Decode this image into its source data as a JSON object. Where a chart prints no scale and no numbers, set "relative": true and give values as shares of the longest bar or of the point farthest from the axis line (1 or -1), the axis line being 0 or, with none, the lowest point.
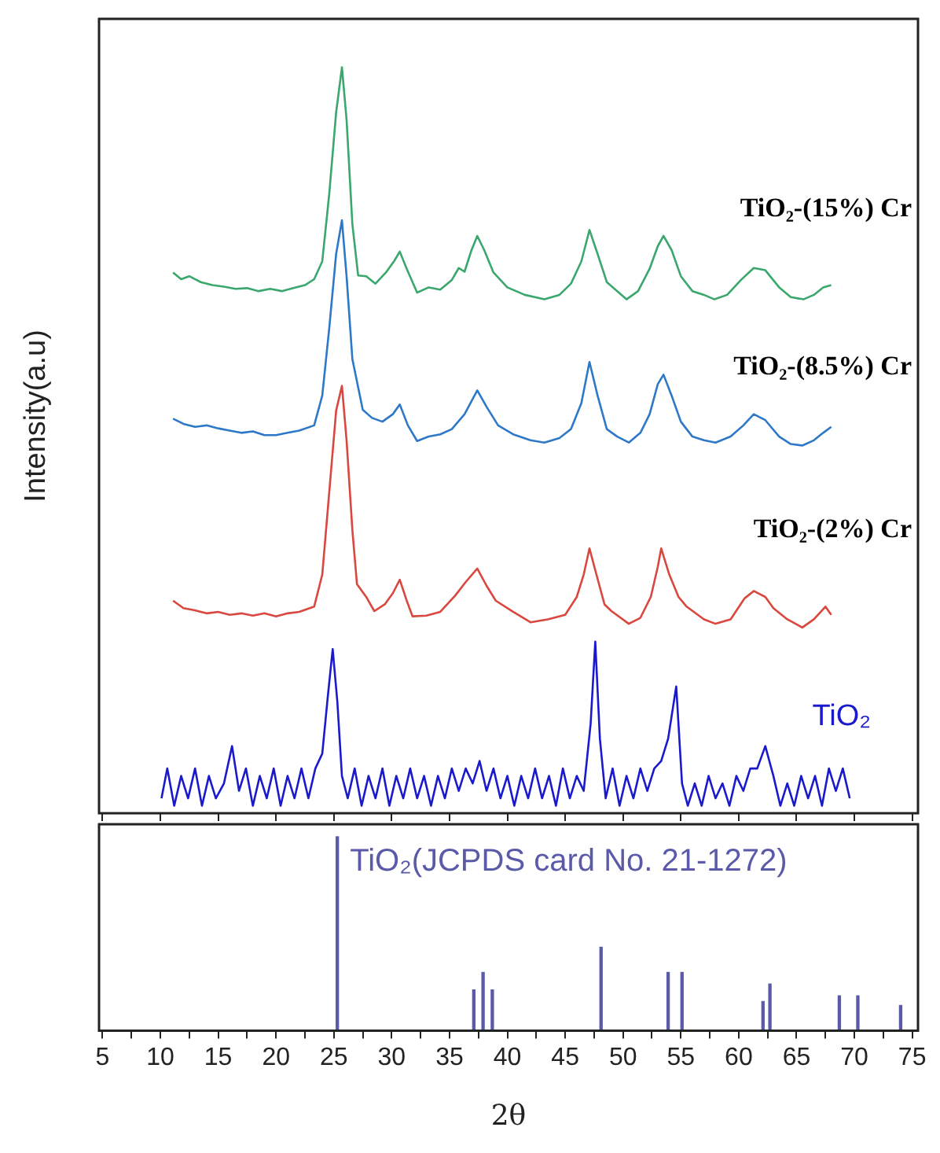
{
  "chart_data": [
    {
      "type": "line",
      "ylabel": "Intensity(a.u)",
      "relative": true,
      "xlim": [
        4.7,
        75.5
      ],
      "xticks": [
        5,
        10,
        15,
        20,
        25,
        30,
        35,
        40,
        45,
        50,
        55,
        60,
        65,
        70,
        75
      ],
      "tick_labels": false,
      "grid": false,
      "legend": false,
      "marker": "none",
      "line_style": "solid",
      "series": [
        {
          "name": "TiO₂-(15%) Cr",
          "color": "#3aa76d",
          "x": [
            11.1,
            11.8,
            12.5,
            13.5,
            14.5,
            15.5,
            16.5,
            17.5,
            18.5,
            19.5,
            20.5,
            21.5,
            22.5,
            23.3,
            24.0,
            24.6,
            25.2,
            25.7,
            26.1,
            26.6,
            27.1,
            27.8,
            28.6,
            29.5,
            30.2,
            30.7,
            31.3,
            32.2,
            33.2,
            34.2,
            35.2,
            35.8,
            36.3,
            36.9,
            37.4,
            38.0,
            38.8,
            40.0,
            41.5,
            43.2,
            44.5,
            45.5,
            46.4,
            47.1,
            47.8,
            48.6,
            49.5,
            50.3,
            51.3,
            52.3,
            53.0,
            53.5,
            54.2,
            55.0,
            56.0,
            57.0,
            57.9,
            59.0,
            60.2,
            61.3,
            62.3,
            63.5,
            64.5,
            65.6,
            66.5,
            67.3,
            68.0
          ],
          "values": [
            0.725,
            0.716,
            0.72,
            0.712,
            0.708,
            0.706,
            0.703,
            0.704,
            0.7,
            0.703,
            0.7,
            0.704,
            0.708,
            0.716,
            0.74,
            0.83,
            0.94,
            1.0,
            0.93,
            0.79,
            0.721,
            0.72,
            0.71,
            0.725,
            0.74,
            0.753,
            0.73,
            0.698,
            0.705,
            0.702,
            0.715,
            0.731,
            0.726,
            0.755,
            0.774,
            0.755,
            0.725,
            0.705,
            0.695,
            0.689,
            0.695,
            0.71,
            0.74,
            0.782,
            0.75,
            0.712,
            0.7,
            0.689,
            0.7,
            0.73,
            0.76,
            0.774,
            0.755,
            0.72,
            0.7,
            0.695,
            0.689,
            0.695,
            0.715,
            0.731,
            0.728,
            0.705,
            0.692,
            0.689,
            0.695,
            0.705,
            0.708
          ]
        },
        {
          "name": "TiO₂-(8.5%) Cr",
          "color": "#2e78c8",
          "x": [
            11.1,
            12.0,
            13.0,
            14.0,
            15.0,
            16.0,
            17.0,
            18.0,
            19.0,
            20.0,
            21.0,
            22.0,
            23.3,
            24.0,
            24.6,
            25.2,
            25.7,
            26.1,
            26.6,
            27.5,
            28.3,
            29.2,
            30.1,
            30.7,
            31.4,
            32.2,
            33.2,
            34.2,
            35.2,
            36.3,
            37.4,
            38.2,
            39.2,
            40.5,
            42.0,
            43.2,
            44.5,
            45.5,
            46.4,
            47.1,
            47.8,
            48.6,
            49.5,
            50.5,
            51.5,
            52.3,
            53.0,
            53.5,
            54.2,
            55.0,
            56.0,
            57.0,
            58.0,
            59.3,
            60.4,
            61.3,
            62.3,
            63.5,
            64.5,
            65.5,
            66.5,
            67.3,
            68.0
          ],
          "values": [
            0.529,
            0.522,
            0.518,
            0.52,
            0.516,
            0.513,
            0.51,
            0.512,
            0.507,
            0.507,
            0.51,
            0.513,
            0.52,
            0.56,
            0.65,
            0.75,
            0.795,
            0.72,
            0.609,
            0.541,
            0.53,
            0.525,
            0.535,
            0.548,
            0.52,
            0.499,
            0.505,
            0.508,
            0.515,
            0.535,
            0.567,
            0.545,
            0.52,
            0.508,
            0.5,
            0.497,
            0.503,
            0.515,
            0.55,
            0.605,
            0.56,
            0.515,
            0.505,
            0.497,
            0.51,
            0.535,
            0.575,
            0.588,
            0.56,
            0.525,
            0.505,
            0.5,
            0.497,
            0.505,
            0.52,
            0.535,
            0.527,
            0.505,
            0.495,
            0.493,
            0.5,
            0.51,
            0.518
          ]
        },
        {
          "name": "TiO₂-(2%) Cr",
          "color": "#d9473f",
          "x": [
            11.1,
            12.0,
            13.0,
            14.0,
            15.0,
            16.0,
            17.0,
            18.0,
            19.0,
            20.0,
            21.0,
            22.0,
            23.3,
            24.0,
            24.6,
            25.2,
            25.7,
            26.1,
            26.6,
            27.0,
            27.8,
            28.5,
            29.4,
            30.1,
            30.7,
            31.3,
            31.8,
            33.0,
            34.2,
            35.5,
            36.4,
            37.4,
            38.2,
            39.0,
            40.5,
            42.0,
            43.5,
            45.0,
            46.0,
            46.6,
            47.1,
            47.7,
            48.4,
            49.0,
            50.5,
            51.5,
            52.4,
            53.0,
            53.3,
            54.0,
            54.8,
            55.5,
            57.0,
            58.0,
            59.3,
            60.5,
            61.3,
            62.3,
            63.0,
            64.2,
            65.5,
            66.5,
            67.5,
            68.0
          ],
          "values": [
            0.285,
            0.275,
            0.272,
            0.268,
            0.27,
            0.266,
            0.268,
            0.265,
            0.268,
            0.264,
            0.268,
            0.27,
            0.277,
            0.32,
            0.43,
            0.54,
            0.573,
            0.5,
            0.38,
            0.307,
            0.29,
            0.271,
            0.28,
            0.295,
            0.313,
            0.285,
            0.264,
            0.265,
            0.27,
            0.292,
            0.31,
            0.328,
            0.305,
            0.285,
            0.27,
            0.256,
            0.26,
            0.266,
            0.29,
            0.32,
            0.355,
            0.32,
            0.28,
            0.271,
            0.254,
            0.262,
            0.29,
            0.33,
            0.355,
            0.32,
            0.29,
            0.277,
            0.26,
            0.254,
            0.26,
            0.288,
            0.298,
            0.29,
            0.275,
            0.26,
            0.249,
            0.26,
            0.277,
            0.266
          ]
        },
        {
          "name": "TiO₂",
          "color": "#1a1acc",
          "x": [
            10.1,
            10.6,
            11.2,
            11.8,
            12.4,
            13.0,
            13.6,
            14.2,
            14.8,
            15.5,
            16.2,
            16.8,
            17.4,
            18.0,
            18.6,
            19.2,
            19.8,
            20.4,
            21.0,
            21.6,
            22.2,
            22.8,
            23.4,
            24.0,
            24.5,
            24.9,
            25.3,
            25.7,
            26.2,
            26.8,
            27.4,
            28.0,
            28.6,
            29.2,
            29.8,
            30.4,
            31.0,
            31.6,
            32.2,
            32.8,
            33.4,
            34.0,
            34.6,
            35.2,
            35.8,
            36.4,
            37.0,
            37.6,
            38.2,
            38.8,
            39.4,
            40.0,
            40.6,
            41.2,
            41.8,
            42.4,
            43.0,
            43.6,
            44.2,
            44.8,
            45.4,
            46.0,
            46.6,
            47.2,
            47.6,
            48.0,
            48.5,
            49.1,
            49.7,
            50.3,
            50.9,
            51.5,
            52.1,
            52.7,
            53.3,
            53.9,
            54.6,
            55.1,
            55.6,
            56.2,
            56.8,
            57.4,
            58.0,
            58.6,
            59.2,
            59.8,
            60.4,
            61.0,
            61.6,
            62.3,
            63.0,
            63.6,
            64.2,
            64.8,
            65.4,
            66.0,
            66.6,
            67.2,
            67.8,
            68.4,
            69.0,
            69.6
          ],
          "values": [
            0.02,
            0.06,
            0.01,
            0.05,
            0.02,
            0.06,
            0.01,
            0.05,
            0.02,
            0.04,
            0.09,
            0.03,
            0.06,
            0.01,
            0.05,
            0.02,
            0.06,
            0.01,
            0.05,
            0.02,
            0.06,
            0.02,
            0.06,
            0.08,
            0.16,
            0.22,
            0.15,
            0.05,
            0.02,
            0.06,
            0.01,
            0.05,
            0.02,
            0.06,
            0.01,
            0.05,
            0.02,
            0.06,
            0.02,
            0.05,
            0.01,
            0.05,
            0.02,
            0.06,
            0.03,
            0.06,
            0.04,
            0.07,
            0.03,
            0.06,
            0.02,
            0.05,
            0.01,
            0.05,
            0.02,
            0.06,
            0.02,
            0.05,
            0.01,
            0.06,
            0.02,
            0.05,
            0.03,
            0.12,
            0.23,
            0.1,
            0.02,
            0.06,
            0.01,
            0.05,
            0.02,
            0.06,
            0.03,
            0.06,
            0.07,
            0.1,
            0.17,
            0.04,
            0.01,
            0.04,
            0.01,
            0.05,
            0.02,
            0.04,
            0.01,
            0.05,
            0.03,
            0.06,
            0.06,
            0.09,
            0.05,
            0.01,
            0.04,
            0.01,
            0.05,
            0.02,
            0.05,
            0.01,
            0.06,
            0.03,
            0.06,
            0.02
          ]
        }
      ]
    },
    {
      "type": "bar",
      "xlabel": "2θ",
      "relative": true,
      "xlim": [
        4.7,
        75.5
      ],
      "xticks": [
        5,
        {
          "value": 7.5,
          "label": null
        },
        10,
        {
          "value": 12.5,
          "label": null
        },
        15,
        {
          "value": 17.5,
          "label": null
        },
        20,
        {
          "value": 22.5,
          "label": null
        },
        25,
        {
          "value": 27.5,
          "label": null
        },
        30,
        {
          "value": 32.5,
          "label": null
        },
        35,
        {
          "value": 37.5,
          "label": null
        },
        40,
        {
          "value": 42.5,
          "label": null
        },
        45,
        {
          "value": 47.5,
          "label": null
        },
        50,
        {
          "value": 52.5,
          "label": null
        },
        55,
        {
          "value": 57.5,
          "label": null
        },
        60,
        {
          "value": 62.5,
          "label": null
        },
        65,
        {
          "value": 67.5,
          "label": null
        },
        70,
        {
          "value": 72.5,
          "label": null
        },
        75
      ],
      "tick_labels": "x",
      "grid": false,
      "legend": false,
      "series": [
        {
          "name": "TiO₂(JCPDS card No. 21-1272)",
          "color": "#5a5aa8",
          "x": [
            25.3,
            37.1,
            37.9,
            38.7,
            48.1,
            53.9,
            55.1,
            62.1,
            62.7,
            68.7,
            70.3,
            74.0
          ],
          "values": [
            1.0,
            0.21,
            0.3,
            0.21,
            0.43,
            0.3,
            0.3,
            0.15,
            0.24,
            0.18,
            0.18,
            0.13
          ]
        }
      ]
    }
  ]
}
